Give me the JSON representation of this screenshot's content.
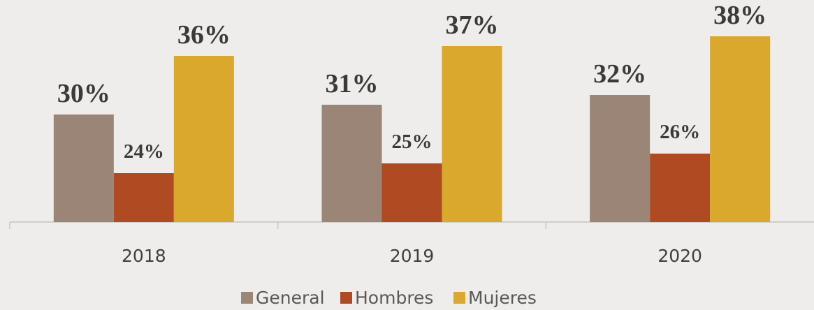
{
  "chart_data": {
    "type": "bar",
    "categories": [
      "2018",
      "2019",
      "2020"
    ],
    "series": [
      {
        "name": "General",
        "color": "#9a8577",
        "values": [
          30,
          31,
          32
        ],
        "value_labels": [
          "30%",
          "31%",
          "32%"
        ]
      },
      {
        "name": "Hombres",
        "color": "#b04a22",
        "values": [
          24,
          25,
          26
        ],
        "value_labels": [
          "24%",
          "25%",
          "26%"
        ]
      },
      {
        "name": "Mujeres",
        "color": "#d9a82c",
        "values": [
          36,
          37,
          38
        ],
        "value_labels": [
          "36%",
          "37%",
          "38%"
        ]
      }
    ],
    "ylim": [
      19,
      39
    ],
    "grid": false,
    "legend": "bottom"
  }
}
